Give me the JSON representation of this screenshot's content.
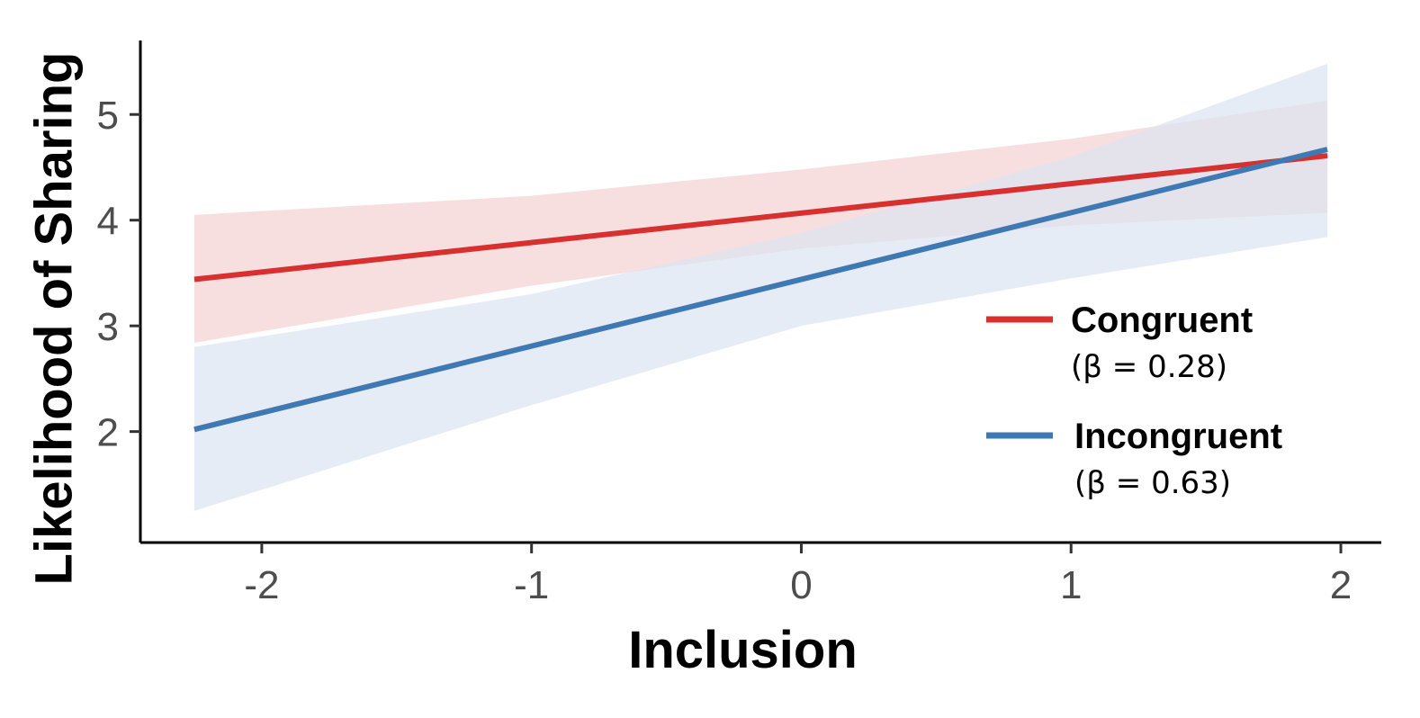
{
  "chart_data": {
    "type": "line",
    "xlabel": "Inclusion",
    "ylabel": "Likelihood of Sharing",
    "xlim": [
      -2.45,
      2.15
    ],
    "ylim": [
      0.95,
      5.7
    ],
    "x_ticks": [
      -2,
      -1,
      0,
      1,
      2
    ],
    "x_tick_labels": [
      "-2",
      "-1",
      "0",
      "1",
      "2"
    ],
    "y_ticks": [
      2,
      3,
      4,
      5
    ],
    "y_tick_labels": [
      "2",
      "3",
      "4",
      "5"
    ],
    "grid": false,
    "legend_position": "right",
    "series": [
      {
        "name": "Congruent",
        "note": "(β = 0.28)",
        "color": "#d7302f",
        "band_color": "#f4d4d6",
        "x": [
          -2.25,
          1.95
        ],
        "y": [
          3.44,
          4.61
        ],
        "ci_x": [
          -2.25,
          -1,
          0,
          1,
          1.95
        ],
        "ci_lower": [
          2.84,
          3.38,
          3.73,
          3.95,
          4.07
        ],
        "ci_upper": [
          4.05,
          4.23,
          4.48,
          4.77,
          5.13
        ]
      },
      {
        "name": "Incongruent",
        "note": "(β = 0.63)",
        "color": "#3e79b4",
        "band_color": "#dbe4f1",
        "x": [
          -2.25,
          1.95
        ],
        "y": [
          2.02,
          4.67
        ],
        "ci_x": [
          -2.25,
          -1,
          0,
          1,
          1.95
        ],
        "ci_lower": [
          1.25,
          2.25,
          3.0,
          3.45,
          3.84
        ],
        "ci_upper": [
          2.8,
          3.3,
          3.88,
          4.6,
          5.48
        ]
      }
    ]
  }
}
